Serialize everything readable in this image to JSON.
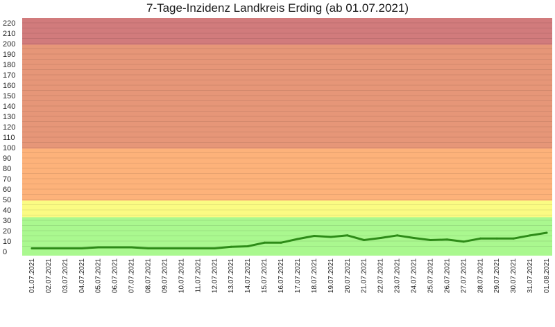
{
  "chart_data": {
    "type": "line",
    "title": "7-Tage-Inzidenz Landkreis Erding (ab 01.07.2021)",
    "xlabel": "",
    "ylabel": "",
    "ylim": [
      0,
      225
    ],
    "y_ticks": [
      0,
      10,
      20,
      30,
      40,
      50,
      60,
      70,
      80,
      90,
      100,
      110,
      120,
      130,
      140,
      150,
      160,
      170,
      180,
      190,
      200,
      210,
      220
    ],
    "grid": true,
    "background_bands": [
      {
        "from": 0,
        "to": 33,
        "color": "#aaf88f"
      },
      {
        "from": 33,
        "to": 49,
        "color": "#fbfb83"
      },
      {
        "from": 49,
        "to": 99,
        "color": "#fdb27a"
      },
      {
        "from": 99,
        "to": 199,
        "color": "#e69678"
      },
      {
        "from": 199,
        "to": 225,
        "color": "#d17b7c"
      }
    ],
    "line_color": "#2e8b18",
    "categories": [
      "01.07.2021",
      "02.07.2021",
      "03.07.2021",
      "04.07.2021",
      "05.07.2021",
      "06.07.2021",
      "07.07.2021",
      "08.07.2021",
      "09.07.2021",
      "10.07.2021",
      "11.07.2021",
      "12.07.2021",
      "13.07.2021",
      "14.07.2021",
      "15.07.2021",
      "16.07.2021",
      "17.07.2021",
      "18.07.2021",
      "19.07.2021",
      "20.07.2021",
      "21.07.2021",
      "22.07.2021",
      "23.07.2021",
      "24.07.2021",
      "25.07.2021",
      "26.07.2021",
      "27.07.2021",
      "28.07.2021",
      "29.07.2021",
      "30.07.2021",
      "31.07.2021",
      "01.08.2021"
    ],
    "series": [
      {
        "values": [
          3,
          3,
          3,
          3,
          4,
          4,
          4,
          3,
          3,
          3,
          3,
          3,
          4.5,
          5,
          8.5,
          8.5,
          12,
          15,
          14,
          15.5,
          11,
          13,
          15.5,
          13,
          11,
          11.5,
          9.5,
          12.5,
          12.5,
          12.5,
          15.5,
          18
        ]
      }
    ]
  }
}
